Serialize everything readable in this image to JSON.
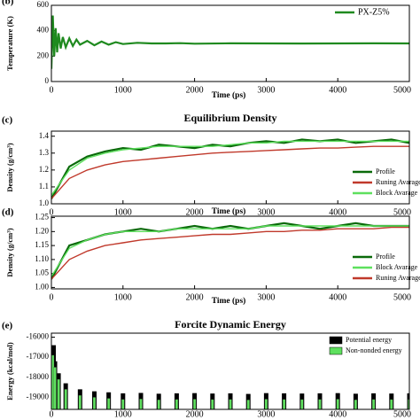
{
  "chart_data": [
    {
      "type": "line",
      "panel_label": "(b)",
      "ylabel": "Temperature (K)",
      "xlabel": "Time (ps)",
      "x": [
        0,
        20,
        40,
        60,
        80,
        100,
        130,
        160,
        200,
        250,
        300,
        350,
        400,
        500,
        600,
        700,
        800,
        900,
        1000,
        1200,
        1400,
        1600,
        1800,
        2000,
        2500,
        3000,
        3500,
        4000,
        4500,
        5000
      ],
      "series": [
        {
          "name": "PX-Z5%",
          "color": "#1f8a1f",
          "values": [
            100,
            520,
            200,
            420,
            230,
            380,
            260,
            350,
            270,
            340,
            280,
            330,
            290,
            320,
            285,
            315,
            290,
            310,
            295,
            305,
            300,
            300,
            302,
            298,
            301,
            300,
            299,
            300,
            301,
            300
          ]
        }
      ],
      "xlim": [
        0,
        5000
      ],
      "xticks": [
        0,
        1000,
        2000,
        3000,
        4000,
        5000
      ],
      "ylim": [
        0,
        600
      ],
      "yticks": [
        0,
        200,
        400,
        600
      ],
      "legend": "upper right"
    },
    {
      "type": "line",
      "panel_label": "(c)",
      "title": "Equilibrium Density",
      "ylabel": "Density (g/cm³)",
      "xlabel": "Time (ps)",
      "x": [
        0,
        250,
        500,
        750,
        1000,
        1250,
        1500,
        1750,
        2000,
        2250,
        2500,
        2750,
        3000,
        3250,
        3500,
        3750,
        4000,
        4250,
        4500,
        4750,
        5000
      ],
      "series": [
        {
          "name": "Profile",
          "color": "#0a6a0a",
          "values": [
            1.03,
            1.22,
            1.28,
            1.31,
            1.33,
            1.32,
            1.35,
            1.34,
            1.33,
            1.35,
            1.34,
            1.36,
            1.37,
            1.36,
            1.38,
            1.37,
            1.38,
            1.36,
            1.37,
            1.38,
            1.36
          ]
        },
        {
          "name": "Runing Avarage",
          "color": "#c0392b",
          "values": [
            1.03,
            1.15,
            1.2,
            1.23,
            1.25,
            1.26,
            1.27,
            1.28,
            1.29,
            1.3,
            1.305,
            1.31,
            1.315,
            1.32,
            1.325,
            1.33,
            1.33,
            1.335,
            1.34,
            1.34,
            1.34
          ]
        },
        {
          "name": "Block Avarage",
          "color": "#5ee05e",
          "values": [
            1.05,
            1.2,
            1.27,
            1.3,
            1.32,
            1.33,
            1.34,
            1.34,
            1.34,
            1.34,
            1.35,
            1.36,
            1.36,
            1.37,
            1.37,
            1.37,
            1.37,
            1.37,
            1.37,
            1.37,
            1.37
          ]
        }
      ],
      "xlim": [
        0,
        5000
      ],
      "xticks": [
        0,
        1000,
        2000,
        3000,
        4000,
        5000
      ],
      "ylim": [
        1.0,
        1.43
      ],
      "yticks": [
        {
          "value": 1,
          "label": "1.0"
        },
        1.1,
        1.2,
        1.3,
        1.4
      ],
      "legend": "lower right"
    },
    {
      "type": "line",
      "panel_label": "(d)",
      "ylabel": "Density (g/cm³)",
      "xlabel": "Time (ps)",
      "x": [
        0,
        250,
        500,
        750,
        1000,
        1250,
        1500,
        1750,
        2000,
        2250,
        2500,
        2750,
        3000,
        3250,
        3500,
        3750,
        4000,
        4250,
        4500,
        4750,
        5000
      ],
      "series": [
        {
          "name": "Profile",
          "color": "#0a6a0a",
          "values": [
            1.03,
            1.15,
            1.17,
            1.19,
            1.2,
            1.21,
            1.2,
            1.21,
            1.22,
            1.21,
            1.22,
            1.21,
            1.22,
            1.23,
            1.22,
            1.21,
            1.22,
            1.23,
            1.22,
            1.22,
            1.22
          ]
        },
        {
          "name": "Block Avarage",
          "color": "#5ee05e",
          "values": [
            1.04,
            1.14,
            1.17,
            1.19,
            1.2,
            1.2,
            1.2,
            1.21,
            1.21,
            1.21,
            1.21,
            1.21,
            1.22,
            1.22,
            1.22,
            1.22,
            1.22,
            1.22,
            1.22,
            1.22,
            1.22
          ]
        },
        {
          "name": "Runing Avarage",
          "color": "#c0392b",
          "values": [
            1.03,
            1.1,
            1.13,
            1.15,
            1.16,
            1.17,
            1.175,
            1.18,
            1.185,
            1.19,
            1.19,
            1.195,
            1.2,
            1.2,
            1.205,
            1.205,
            1.21,
            1.21,
            1.21,
            1.215,
            1.215
          ]
        }
      ],
      "xlim": [
        0,
        5000
      ],
      "xticks": [
        0,
        1000,
        2000,
        3000,
        4000,
        5000
      ],
      "ylim": [
        0.995,
        1.255
      ],
      "yticks": [
        {
          "value": 1,
          "label": "1.00"
        },
        1.05,
        {
          "value": 1.1,
          "label": "1.10"
        },
        1.15,
        {
          "value": 1.2,
          "label": "1.20"
        },
        1.25
      ],
      "legend": "lower right"
    },
    {
      "type": "bar",
      "panel_label": "(e)",
      "title": "Forcite Dynamic Energy",
      "ylabel": "Energy (kcal/mol)",
      "x": [
        0,
        50,
        100,
        200,
        400,
        600,
        800,
        1000,
        1250,
        1500,
        1750,
        2000,
        2250,
        2500,
        2750,
        3000,
        3250,
        3500,
        3750,
        4000,
        4250,
        4500,
        4750,
        5000
      ],
      "series": [
        {
          "name": "Potential energy",
          "color": "#000000",
          "values": [
            -16400,
            -17200,
            -17800,
            -18300,
            -18600,
            -18700,
            -18750,
            -18800,
            -18780,
            -18820,
            -18800,
            -18790,
            -18810,
            -18800,
            -18830,
            -18790,
            -18800,
            -18810,
            -18800,
            -18790,
            -18820,
            -18800,
            -18810,
            -18800
          ]
        },
        {
          "name": "Non-nonded energy",
          "color": "#5ee05e",
          "values": [
            -16900,
            -17500,
            -18100,
            -18600,
            -18900,
            -19000,
            -19050,
            -19100,
            -19080,
            -19120,
            -19100,
            -19090,
            -19110,
            -19100,
            -19130,
            -19090,
            -19100,
            -19110,
            -19100,
            -19090,
            -19120,
            -19100,
            -19110,
            -19100
          ]
        }
      ],
      "xlim": [
        0,
        5000
      ],
      "xticks": [
        0,
        1000,
        2000,
        3000,
        4000,
        5000
      ],
      "ylim": [
        -19600,
        -15800
      ],
      "yticks": [
        -16000,
        -17000,
        -18000,
        -19000
      ],
      "legend": "upper right"
    }
  ]
}
